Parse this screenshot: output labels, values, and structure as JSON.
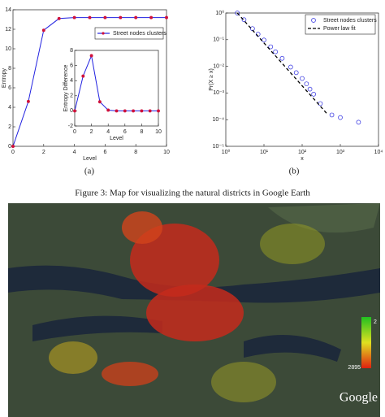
{
  "chart_data": [
    {
      "type": "line",
      "ylabel": "Entropy",
      "xlabel": "Level",
      "x": [
        0,
        1,
        2,
        3,
        4,
        5,
        6,
        7,
        8,
        9,
        10
      ],
      "series": [
        {
          "name": "Street nodes clusters",
          "color": "#2020e0",
          "marker_color": "#d0103a",
          "values": [
            0,
            4.6,
            11.9,
            13.1,
            13.2,
            13.2,
            13.2,
            13.2,
            13.2,
            13.2,
            13.2
          ]
        }
      ],
      "xlim": [
        0,
        10
      ],
      "xticks": [
        0,
        2,
        4,
        6,
        8,
        10
      ],
      "ylim": [
        0,
        14
      ],
      "yticks": [
        0,
        2,
        4,
        6,
        8,
        10,
        12,
        14
      ],
      "legend": "top-right"
    },
    {
      "type": "line",
      "ylabel": "Entropy Difference",
      "xlabel": "Level",
      "x": [
        0,
        1,
        2,
        3,
        4,
        5,
        6,
        7,
        8,
        9,
        10
      ],
      "series": [
        {
          "color": "#2020e0",
          "marker_color": "#d0103a",
          "values": [
            0,
            4.6,
            7.3,
            1.2,
            0.1,
            0,
            0,
            0,
            0,
            0,
            0
          ]
        }
      ],
      "xlim": [
        0,
        10
      ],
      "xticks": [
        0,
        2,
        4,
        6,
        8,
        10
      ],
      "ylim": [
        -2,
        8
      ],
      "yticks": [
        -2,
        0,
        2,
        4,
        6,
        8
      ]
    },
    {
      "type": "scatter",
      "ylabel": "Pr(X ≥ x)",
      "xlabel": "x",
      "xscale": "log",
      "yscale": "log",
      "series": [
        {
          "name": "Street nodes clusters",
          "color": "#3030e0",
          "marker": "circle",
          "line": "none",
          "x": [
            2,
            3,
            5,
            7,
            10,
            15,
            20,
            30,
            50,
            70,
            100,
            130,
            160,
            200,
            300,
            600,
            1000,
            3000
          ],
          "values": [
            1,
            0.56,
            0.26,
            0.16,
            0.097,
            0.054,
            0.035,
            0.02,
            0.0094,
            0.0058,
            0.0035,
            0.0022,
            0.0014,
            0.0009,
            0.0004,
            0.00015,
            0.00012,
            8e-05
          ]
        },
        {
          "name": "Power law fit",
          "color": "#000000",
          "marker": "none",
          "line": "dashed",
          "x": [
            2,
            460
          ],
          "values": [
            1,
            0.00016
          ]
        }
      ],
      "xlim": [
        1,
        10000
      ],
      "xticks": [
        {
          "value": 1,
          "label": "10⁰"
        },
        {
          "value": 10,
          "label": "10¹"
        },
        {
          "value": 100,
          "label": "10²"
        },
        {
          "value": 1000,
          "label": "10³"
        },
        {
          "value": 10000,
          "label": "10⁴"
        }
      ],
      "ylim": [
        1e-05,
        1
      ],
      "yticks": [
        {
          "value": 1e-05,
          "label": "10⁻⁵"
        },
        {
          "value": 0.0001,
          "label": "10⁻⁴"
        },
        {
          "value": 0.001,
          "label": "10⁻³"
        },
        {
          "value": 0.01,
          "label": "10⁻²"
        },
        {
          "value": 0.1,
          "label": "10⁻¹"
        },
        {
          "value": 1,
          "label": "10⁰"
        }
      ],
      "legend": "top-right"
    }
  ],
  "captions": {
    "a": "(a)",
    "b": "(b)",
    "figure": "Figure 3: Map for visualizing the natural districts in Google Earth"
  },
  "map": {
    "watermark": "Google",
    "colorbar_top": "2",
    "colorbar_bottom": "2895"
  }
}
